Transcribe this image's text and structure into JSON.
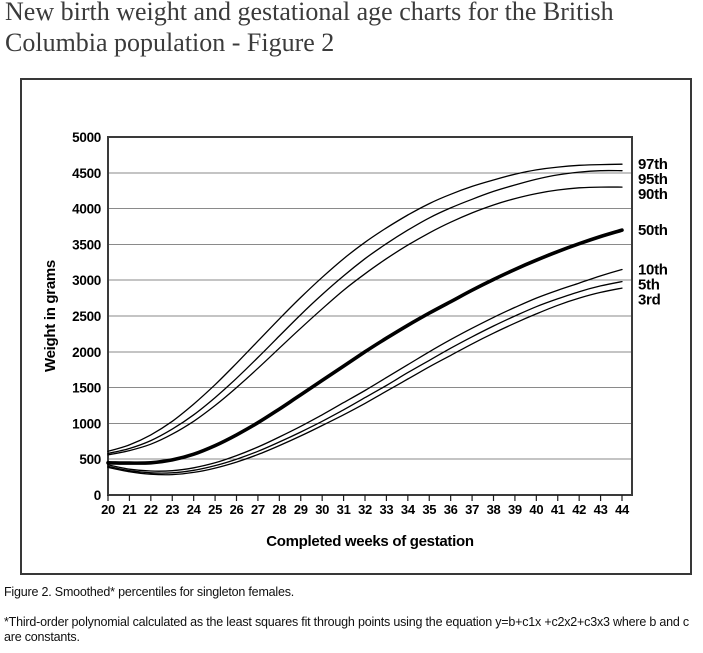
{
  "page": {
    "title": "New birth weight and gestational age charts for the British Columbia population - Figure 2",
    "caption": "Figure 2. Smoothed* percentiles for singleton females.",
    "footnote": "*Third-order polynomial calculated as the least squares fit through points using the equation y=b+c1x +c2x2+c3x3 where b and c are constants."
  },
  "chart_data": {
    "type": "line",
    "title": "",
    "xlabel": "Completed weeks of gestation",
    "ylabel": "Weight in grams",
    "xlim": [
      20,
      44
    ],
    "ylim": [
      0,
      5000
    ],
    "ytick_step": 500,
    "grid": "horizontal",
    "legend_position": "right-of-curves",
    "x": [
      20,
      21,
      22,
      23,
      24,
      25,
      26,
      27,
      28,
      29,
      30,
      31,
      32,
      33,
      34,
      35,
      36,
      37,
      38,
      39,
      40,
      41,
      42,
      43,
      44
    ],
    "series": [
      {
        "name": "97th",
        "emphasis": false,
        "values": [
          610,
          700,
          840,
          1030,
          1270,
          1540,
          1840,
          2150,
          2460,
          2760,
          3040,
          3300,
          3530,
          3730,
          3910,
          4070,
          4200,
          4310,
          4400,
          4480,
          4540,
          4580,
          4605,
          4615,
          4620
        ]
      },
      {
        "name": "95th",
        "emphasis": false,
        "values": [
          580,
          650,
          760,
          920,
          1120,
          1360,
          1630,
          1920,
          2220,
          2520,
          2800,
          3060,
          3300,
          3510,
          3700,
          3870,
          4010,
          4130,
          4240,
          4330,
          4410,
          4470,
          4510,
          4530,
          4530
        ]
      },
      {
        "name": "90th",
        "emphasis": false,
        "values": [
          560,
          620,
          710,
          850,
          1030,
          1250,
          1500,
          1770,
          2050,
          2330,
          2600,
          2860,
          3090,
          3300,
          3490,
          3660,
          3810,
          3940,
          4050,
          4140,
          4210,
          4260,
          4290,
          4300,
          4300
        ]
      },
      {
        "name": "50th",
        "emphasis": true,
        "values": [
          450,
          445,
          450,
          490,
          570,
          690,
          840,
          1010,
          1200,
          1400,
          1600,
          1800,
          2000,
          2190,
          2370,
          2540,
          2700,
          2860,
          3010,
          3150,
          3280,
          3400,
          3510,
          3610,
          3700
        ]
      },
      {
        "name": "10th",
        "emphasis": false,
        "values": [
          420,
          360,
          335,
          340,
          380,
          450,
          550,
          670,
          810,
          960,
          1120,
          1290,
          1460,
          1640,
          1820,
          2000,
          2170,
          2330,
          2480,
          2620,
          2750,
          2860,
          2960,
          3060,
          3150
        ]
      },
      {
        "name": "5th",
        "emphasis": false,
        "values": [
          400,
          340,
          310,
          310,
          345,
          410,
          500,
          610,
          740,
          880,
          1030,
          1190,
          1360,
          1530,
          1710,
          1880,
          2050,
          2210,
          2360,
          2500,
          2630,
          2740,
          2840,
          2920,
          2980
        ]
      },
      {
        "name": "3rd",
        "emphasis": false,
        "values": [
          385,
          325,
          290,
          285,
          315,
          375,
          460,
          565,
          690,
          825,
          970,
          1120,
          1280,
          1450,
          1620,
          1790,
          1950,
          2110,
          2260,
          2400,
          2530,
          2650,
          2750,
          2830,
          2890
        ]
      }
    ],
    "colors": {
      "curve": "#000000",
      "grid": "#8a8a8a",
      "frame": "#3a3a3a",
      "tick": "#1a1a1a",
      "text": "#000000"
    }
  }
}
